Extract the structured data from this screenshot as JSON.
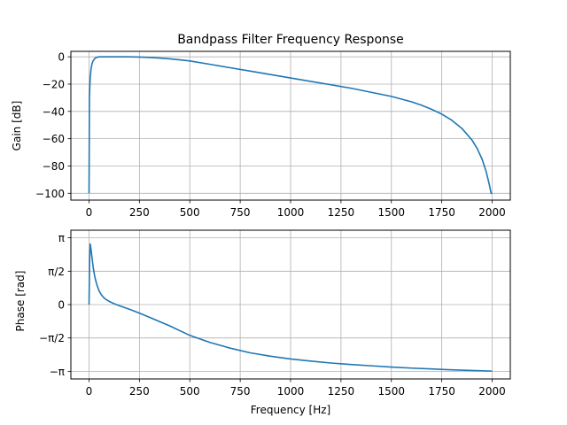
{
  "chart_data": [
    {
      "type": "line",
      "title": "Bandpass Filter Frequency Response",
      "xlabel": "",
      "ylabel": "Gain [dB]",
      "xlim": [
        -90,
        2090
      ],
      "ylim": [
        -105,
        4
      ],
      "grid": true,
      "xticks": [
        0,
        250,
        500,
        750,
        1000,
        1250,
        1500,
        1750,
        2000
      ],
      "xticklabels": [
        "0",
        "250",
        "500",
        "750",
        "1000",
        "1250",
        "1500",
        "1750",
        "2000"
      ],
      "yticks": [
        0,
        -20,
        -40,
        -60,
        -80,
        -100
      ],
      "yticklabels": [
        "0",
        "−20",
        "−40",
        "−60",
        "−80",
        "−100"
      ],
      "series": [
        {
          "color": "#1f77b4",
          "x": [
            0,
            1,
            2,
            4,
            6,
            10,
            15,
            20,
            30,
            40,
            50,
            75,
            100,
            150,
            200,
            250,
            300,
            350,
            400,
            450,
            500,
            600,
            700,
            800,
            900,
            1000,
            1100,
            1200,
            1300,
            1400,
            1500,
            1600,
            1650,
            1700,
            1750,
            1800,
            1850,
            1900,
            1925,
            1950,
            1970,
            1985,
            1995,
            2000
          ],
          "y": [
            -100,
            -70,
            -30,
            -22,
            -15,
            -9,
            -5,
            -3,
            -1,
            -0.3,
            0,
            0,
            0,
            0,
            0,
            -0.2,
            -0.5,
            -0.9,
            -1.5,
            -2.2,
            -3,
            -5.5,
            -8,
            -10.5,
            -13,
            -15.5,
            -18,
            -20.5,
            -23,
            -26,
            -29,
            -33,
            -35.5,
            -38.5,
            -42,
            -46.5,
            -52.5,
            -61,
            -67,
            -75,
            -84,
            -93,
            -100,
            -100
          ]
        }
      ]
    },
    {
      "type": "line",
      "title": "",
      "xlabel": "Frequency [Hz]",
      "ylabel": "Phase [rad]",
      "xlim": [
        -90,
        2090
      ],
      "ylim": [
        -3.5,
        3.5
      ],
      "grid": true,
      "xticks": [
        0,
        250,
        500,
        750,
        1000,
        1250,
        1500,
        1750,
        2000
      ],
      "xticklabels": [
        "0",
        "250",
        "500",
        "750",
        "1000",
        "1250",
        "1500",
        "1750",
        "2000"
      ],
      "yticks": [
        3.14159,
        1.5708,
        0,
        -1.5708,
        -3.14159
      ],
      "yticklabels": [
        "π",
        "π/2",
        "0",
        "−π/2",
        "−π"
      ],
      "series": [
        {
          "color": "#1f77b4",
          "x": [
            0,
            3,
            6,
            10,
            15,
            20,
            25,
            30,
            40,
            50,
            60,
            70,
            80,
            100,
            125,
            150,
            200,
            250,
            300,
            400,
            500,
            600,
            700,
            800,
            900,
            1000,
            1100,
            1200,
            1300,
            1400,
            1500,
            1600,
            1700,
            1800,
            1900,
            2000
          ],
          "y": [
            0,
            2.1,
            2.85,
            2.6,
            2.2,
            1.8,
            1.5,
            1.25,
            0.9,
            0.65,
            0.48,
            0.36,
            0.27,
            0.15,
            0.04,
            -0.05,
            -0.22,
            -0.4,
            -0.6,
            -1.0,
            -1.45,
            -1.78,
            -2.05,
            -2.27,
            -2.43,
            -2.56,
            -2.66,
            -2.75,
            -2.82,
            -2.88,
            -2.94,
            -2.99,
            -3.03,
            -3.07,
            -3.1,
            -3.13
          ]
        }
      ]
    }
  ]
}
